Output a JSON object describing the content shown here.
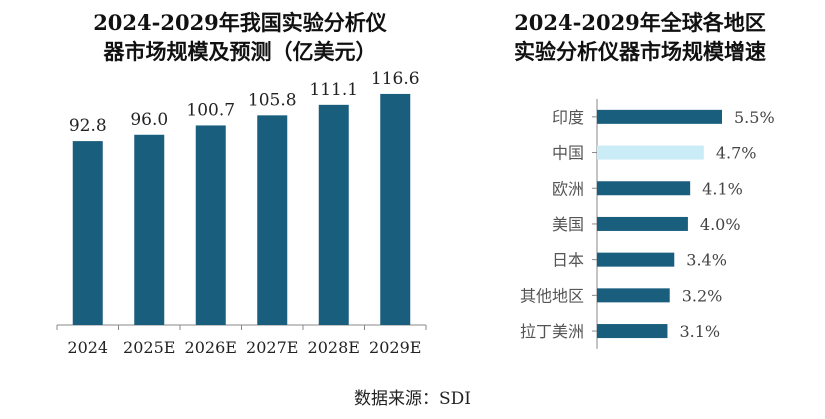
{
  "left_chart": {
    "title_line1": "2024-2029年我国实验分析仪",
    "title_line2": "器市场规模及预测（亿美元）"
  },
  "right_chart": {
    "title_line1": "2024-2029年全球各地区",
    "title_line2": "实验分析仪器市场规模增速"
  },
  "source": "数据来源：SDI",
  "colors": {
    "bar": "#1a5e7e",
    "highlight": "#c9ecf7",
    "axis": "#888888"
  },
  "chart_data": [
    {
      "type": "bar",
      "title": "2024-2029年我国实验分析仪器市场规模及预测（亿美元）",
      "categories": [
        "2024",
        "2025E",
        "2026E",
        "2027E",
        "2028E",
        "2029E"
      ],
      "values": [
        92.8,
        96.0,
        100.7,
        105.8,
        111.1,
        116.6
      ],
      "value_labels": [
        "92.8",
        "96.0",
        "100.7",
        "105.8",
        "111.1",
        "116.6"
      ],
      "ylim": [
        0,
        120
      ],
      "grid": false
    },
    {
      "type": "bar",
      "orientation": "horizontal",
      "title": "2024-2029年全球各地区实验分析仪器市场规模增速",
      "categories": [
        "印度",
        "中国",
        "欧洲",
        "美国",
        "日本",
        "其他地区",
        "拉丁美洲"
      ],
      "values": [
        5.5,
        4.7,
        4.1,
        4.0,
        3.4,
        3.2,
        3.1
      ],
      "value_labels": [
        "5.5%",
        "4.7%",
        "4.1%",
        "4.0%",
        "3.4%",
        "3.2%",
        "3.1%"
      ],
      "highlight_category": "中国",
      "xlim": [
        0,
        6
      ],
      "grid": false
    }
  ]
}
